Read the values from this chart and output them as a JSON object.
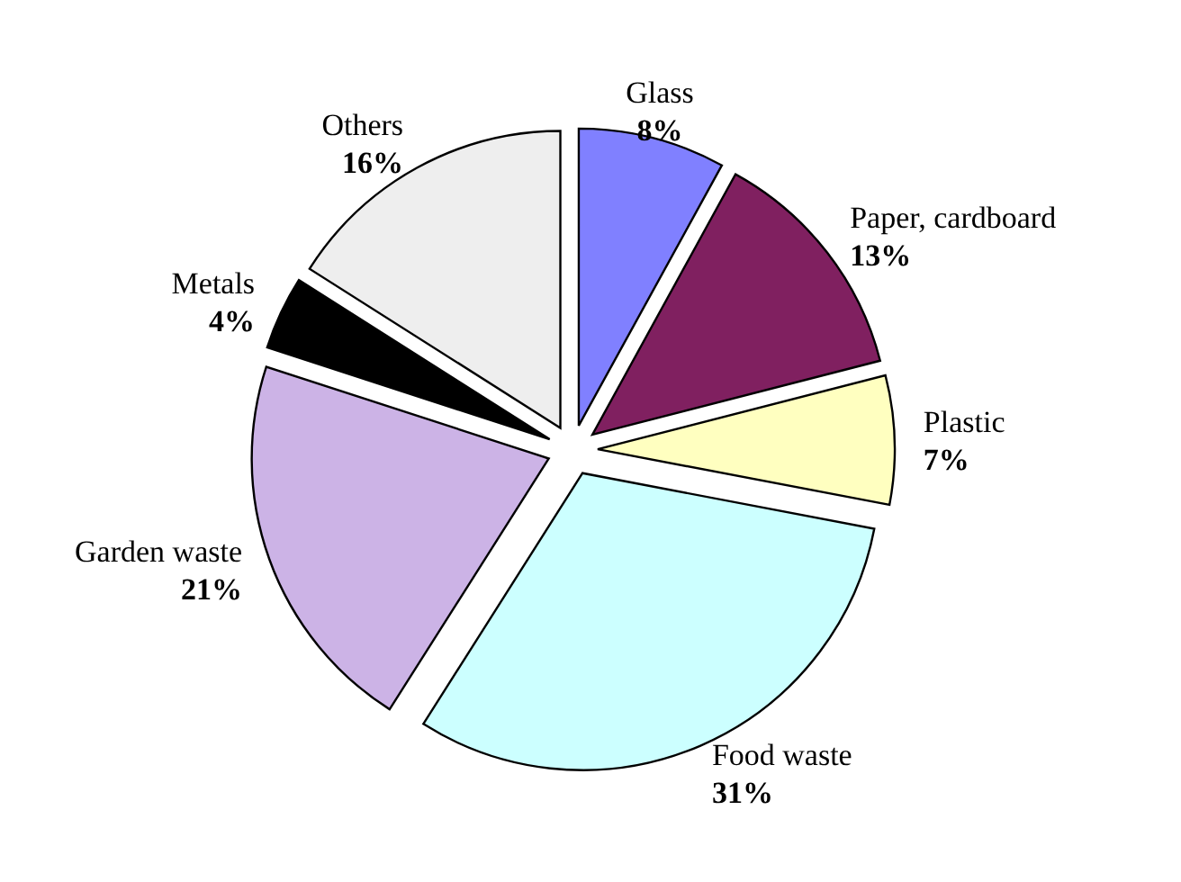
{
  "chart_data": {
    "type": "pie",
    "categories": [
      "Glass",
      "Paper, cardboard",
      "Plastic",
      "Food waste",
      "Garden waste",
      "Metals",
      "Others"
    ],
    "values": [
      8,
      13,
      7,
      31,
      21,
      4,
      16
    ],
    "value_labels": [
      "8%",
      "13%",
      "7%",
      "31%",
      "21%",
      "4%",
      "16%"
    ],
    "colors": [
      "#8080ff",
      "#802060",
      "#ffffc0",
      "#ccffff",
      "#ccb3e6",
      "#000000",
      "#eeeeee"
    ]
  }
}
